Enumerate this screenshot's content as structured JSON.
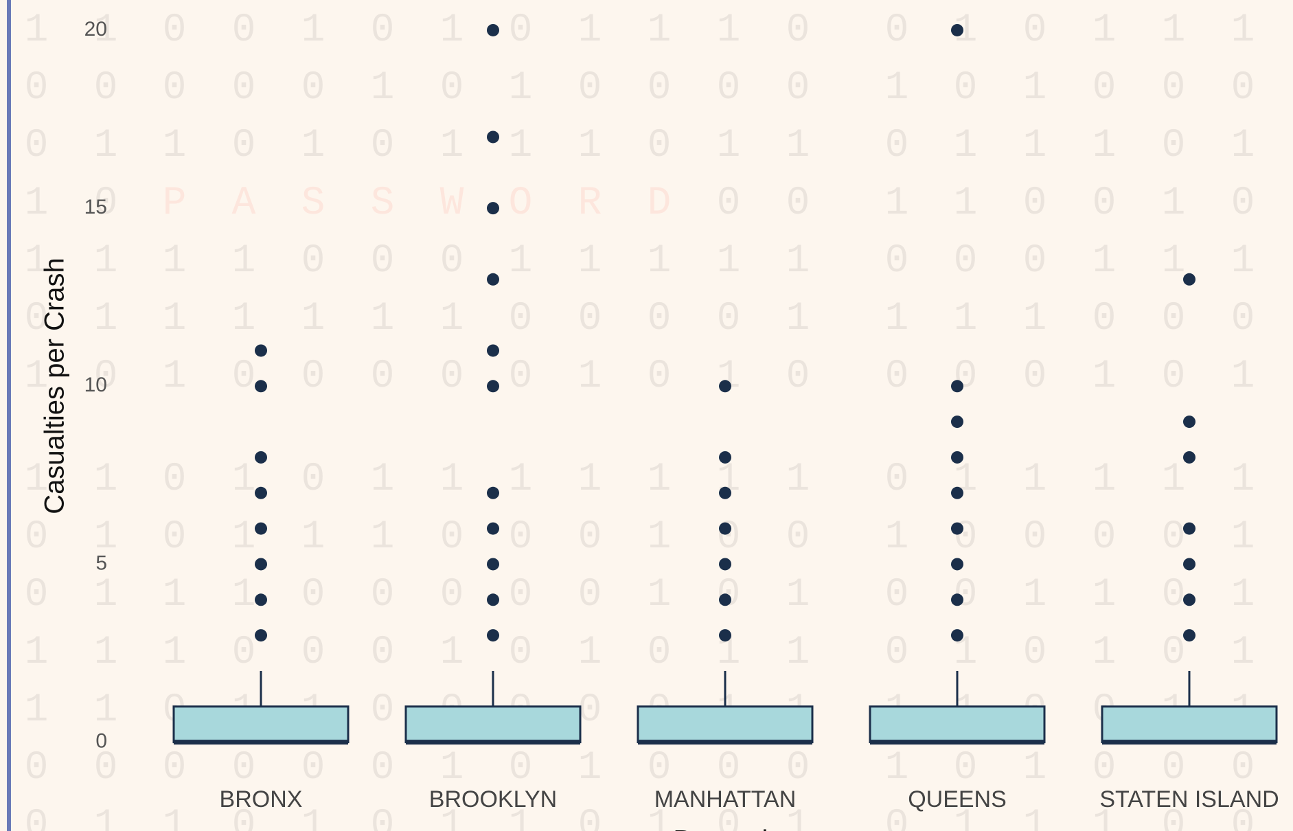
{
  "chart_data": {
    "type": "box",
    "y_label": "Casualties per Crash",
    "x_label": "Borough",
    "categories": [
      "BRONX",
      "BROOKLYN",
      "MANHATTAN",
      "QUEENS",
      "STATEN ISLAND"
    ],
    "box_color": "#a8d8dc",
    "line_color": "#1b2f4a",
    "ylim": [
      -2.4,
      20.8
    ],
    "yticks": [
      0,
      5,
      10,
      15,
      20
    ],
    "grid": false,
    "series": [
      {
        "min": 0,
        "q1": 0,
        "median": 0,
        "q3": 1,
        "max": 2,
        "outliers": [
          3,
          4,
          5,
          6,
          7,
          8,
          10,
          11
        ]
      },
      {
        "min": 0,
        "q1": 0,
        "median": 0,
        "q3": 1,
        "max": 2,
        "outliers": [
          3,
          4,
          5,
          6,
          7,
          10,
          11,
          13,
          15,
          17,
          20
        ]
      },
      {
        "min": 0,
        "q1": 0,
        "median": 0,
        "q3": 1,
        "max": 2,
        "outliers": [
          3,
          4,
          5,
          6,
          7,
          8,
          10
        ]
      },
      {
        "min": 0,
        "q1": 0,
        "median": 0,
        "q3": 1,
        "max": 2,
        "outliers": [
          3,
          4,
          5,
          6,
          7,
          8,
          9,
          10,
          20
        ]
      },
      {
        "min": 0,
        "q1": 0,
        "median": 0,
        "q3": 1,
        "max": 2,
        "outliers": [
          3,
          4,
          5,
          6,
          8,
          9,
          13
        ]
      }
    ]
  },
  "background": {
    "rows": [
      "110010101110010111",
      "000001010000101000",
      "011010111011011101",
      "10PASSWORD00110010",
      "111100011111000111",
      "011111100001111000",
      "101000001010000101",
      "110101111111011111",
      "010111000100100001",
      "011100000101001101",
      "111000101011010101",
      "110110000011110011",
      "000000101000101000",
      "011010110101011100"
    ]
  }
}
